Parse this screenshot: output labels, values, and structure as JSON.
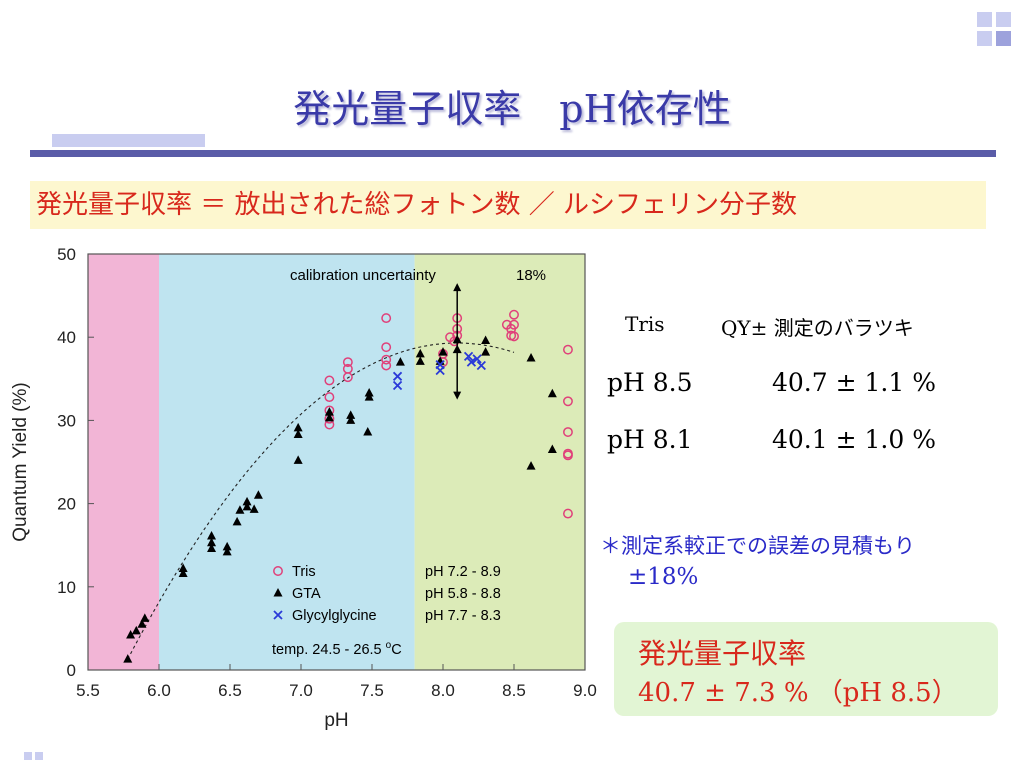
{
  "slide": {
    "title": "発光量子収率　pH依存性",
    "formula": "発光量子収率 ＝ 放出された総フォトン数 ／ ルシフェリン分子数",
    "table": {
      "header_col1": "Tris",
      "header_col2": "QY± 測定のバラツキ",
      "rows": [
        {
          "ph": "pH 8.5",
          "value": "40.7 ± 1.1 %"
        },
        {
          "ph": "pH 8.1",
          "value": "40.1 ± 1.0 %"
        }
      ]
    },
    "note_line1": "＊測定系較正での誤差の見積もり",
    "note_line2": "±18%",
    "result_title": "発光量子収率",
    "result_value": "40.7 ± 7.3 % （pH 8.5）"
  },
  "colors": {
    "title": "#3a3aa8",
    "accent_bar": "#5a5ca8",
    "red_text": "#d8281c",
    "blue_text": "#2a2ac8",
    "region_pink": "#f2b5d6",
    "region_blue": "#bfe4f0",
    "region_green": "#dcebb8",
    "tris": "#e0407a",
    "gta": "#000000",
    "glycylglycine": "#2a3ad8"
  },
  "chart_data": {
    "type": "scatter",
    "xlabel": "pH",
    "ylabel": "Quantum Yield (%)",
    "xlim": [
      5.5,
      9.0
    ],
    "ylim": [
      0,
      50
    ],
    "xticks": [
      5.5,
      6.0,
      6.5,
      7.0,
      7.5,
      8.0,
      8.5,
      9.0
    ],
    "xtick_labels": [
      "5.5",
      "6.0",
      "6.5",
      "7.0",
      "7.5",
      "8.0",
      "8.5",
      "9.0"
    ],
    "yticks": [
      0,
      10,
      20,
      30,
      40,
      50
    ],
    "ytick_labels": [
      "0",
      "10",
      "20",
      "30",
      "40",
      "50"
    ],
    "grid": false,
    "regions": [
      {
        "from": 5.5,
        "to": 6.0,
        "color": "#f2b5d6"
      },
      {
        "from": 6.0,
        "to": 7.8,
        "color": "#bfe4f0"
      },
      {
        "from": 7.8,
        "to": 9.0,
        "color": "#dcebb8"
      }
    ],
    "annotation": {
      "label": "calibration uncertainty",
      "value": "18%",
      "arrow_x": 8.1,
      "arrow_y_low": 32.5,
      "arrow_y_high": 46.5
    },
    "legend": {
      "position": "bottom-center",
      "entries": [
        {
          "name": "Tris",
          "range": "pH 7.2 - 8.9"
        },
        {
          "name": "GTA",
          "range": "pH 5.8 - 8.8"
        },
        {
          "name": "Glycylglycine",
          "range": "pH 7.7 - 8.3"
        }
      ],
      "temp_prefix": "temp.  24.5 - 26.5 ",
      "temp_deg": "o",
      "temp_unit": "C"
    },
    "series": [
      {
        "name": "Tris",
        "marker": "circle",
        "points": [
          [
            7.2,
            34.8
          ],
          [
            7.2,
            32.8
          ],
          [
            7.2,
            31.2
          ],
          [
            7.2,
            30.2
          ],
          [
            7.2,
            29.5
          ],
          [
            7.33,
            37
          ],
          [
            7.33,
            36.2
          ],
          [
            7.33,
            35.2
          ],
          [
            7.6,
            42.3
          ],
          [
            7.6,
            38.8
          ],
          [
            7.6,
            37.3
          ],
          [
            7.6,
            36.6
          ],
          [
            8.0,
            38
          ],
          [
            8.0,
            37
          ],
          [
            8.05,
            40
          ],
          [
            8.08,
            39.5
          ],
          [
            8.1,
            42.3
          ],
          [
            8.1,
            41
          ],
          [
            8.1,
            40.2
          ],
          [
            8.45,
            41.5
          ],
          [
            8.48,
            41
          ],
          [
            8.48,
            40.2
          ],
          [
            8.5,
            42.7
          ],
          [
            8.5,
            41.5
          ],
          [
            8.5,
            40.1
          ],
          [
            8.88,
            38.5
          ],
          [
            8.88,
            32.3
          ],
          [
            8.88,
            28.6
          ],
          [
            8.88,
            26
          ],
          [
            8.88,
            25.8
          ],
          [
            8.88,
            18.8
          ]
        ]
      },
      {
        "name": "GTA",
        "marker": "triangle",
        "points": [
          [
            5.78,
            1.3
          ],
          [
            5.8,
            4.2
          ],
          [
            5.84,
            4.7
          ],
          [
            5.88,
            5.5
          ],
          [
            5.9,
            6.2
          ],
          [
            6.17,
            11.6
          ],
          [
            6.17,
            12.2
          ],
          [
            6.37,
            14.6
          ],
          [
            6.37,
            15.3
          ],
          [
            6.37,
            16.1
          ],
          [
            6.48,
            14.2
          ],
          [
            6.48,
            14.8
          ],
          [
            6.55,
            17.8
          ],
          [
            6.57,
            19.2
          ],
          [
            6.62,
            20.2
          ],
          [
            6.62,
            19.6
          ],
          [
            6.67,
            19.3
          ],
          [
            6.7,
            21
          ],
          [
            6.98,
            25.2
          ],
          [
            6.98,
            28.3
          ],
          [
            6.98,
            29.1
          ],
          [
            7.2,
            31
          ],
          [
            7.2,
            30.3
          ],
          [
            7.35,
            30.6
          ],
          [
            7.35,
            30
          ],
          [
            7.47,
            28.6
          ],
          [
            7.48,
            33.3
          ],
          [
            7.48,
            32.8
          ],
          [
            7.7,
            37
          ],
          [
            7.84,
            38
          ],
          [
            7.84,
            37.1
          ],
          [
            7.98,
            37.1
          ],
          [
            8.0,
            38.2
          ],
          [
            8.1,
            38.5
          ],
          [
            8.1,
            39.7
          ],
          [
            8.3,
            38.2
          ],
          [
            8.3,
            39.6
          ],
          [
            8.62,
            37.5
          ],
          [
            8.62,
            24.5
          ],
          [
            8.77,
            33.2
          ],
          [
            8.77,
            26.5
          ]
        ]
      },
      {
        "name": "Glycylglycine",
        "marker": "cross",
        "points": [
          [
            7.68,
            35.3
          ],
          [
            7.68,
            34.2
          ],
          [
            7.98,
            36
          ],
          [
            7.98,
            36.7
          ],
          [
            8.18,
            37.7
          ],
          [
            8.2,
            37
          ],
          [
            8.24,
            37.4
          ],
          [
            8.27,
            36.6
          ]
        ]
      }
    ],
    "fit": {
      "type": "quadratic",
      "peak_x": 8.1,
      "peak_y": 39.3,
      "points": [
        [
          5.78,
          1.3
        ],
        [
          6.0,
          8.8
        ],
        [
          6.5,
          22.3
        ],
        [
          7.0,
          31.4
        ],
        [
          7.5,
          36.6
        ],
        [
          8.0,
          39.1
        ],
        [
          8.1,
          39.3
        ],
        [
          8.3,
          39.0
        ],
        [
          8.5,
          38.3
        ]
      ]
    }
  }
}
